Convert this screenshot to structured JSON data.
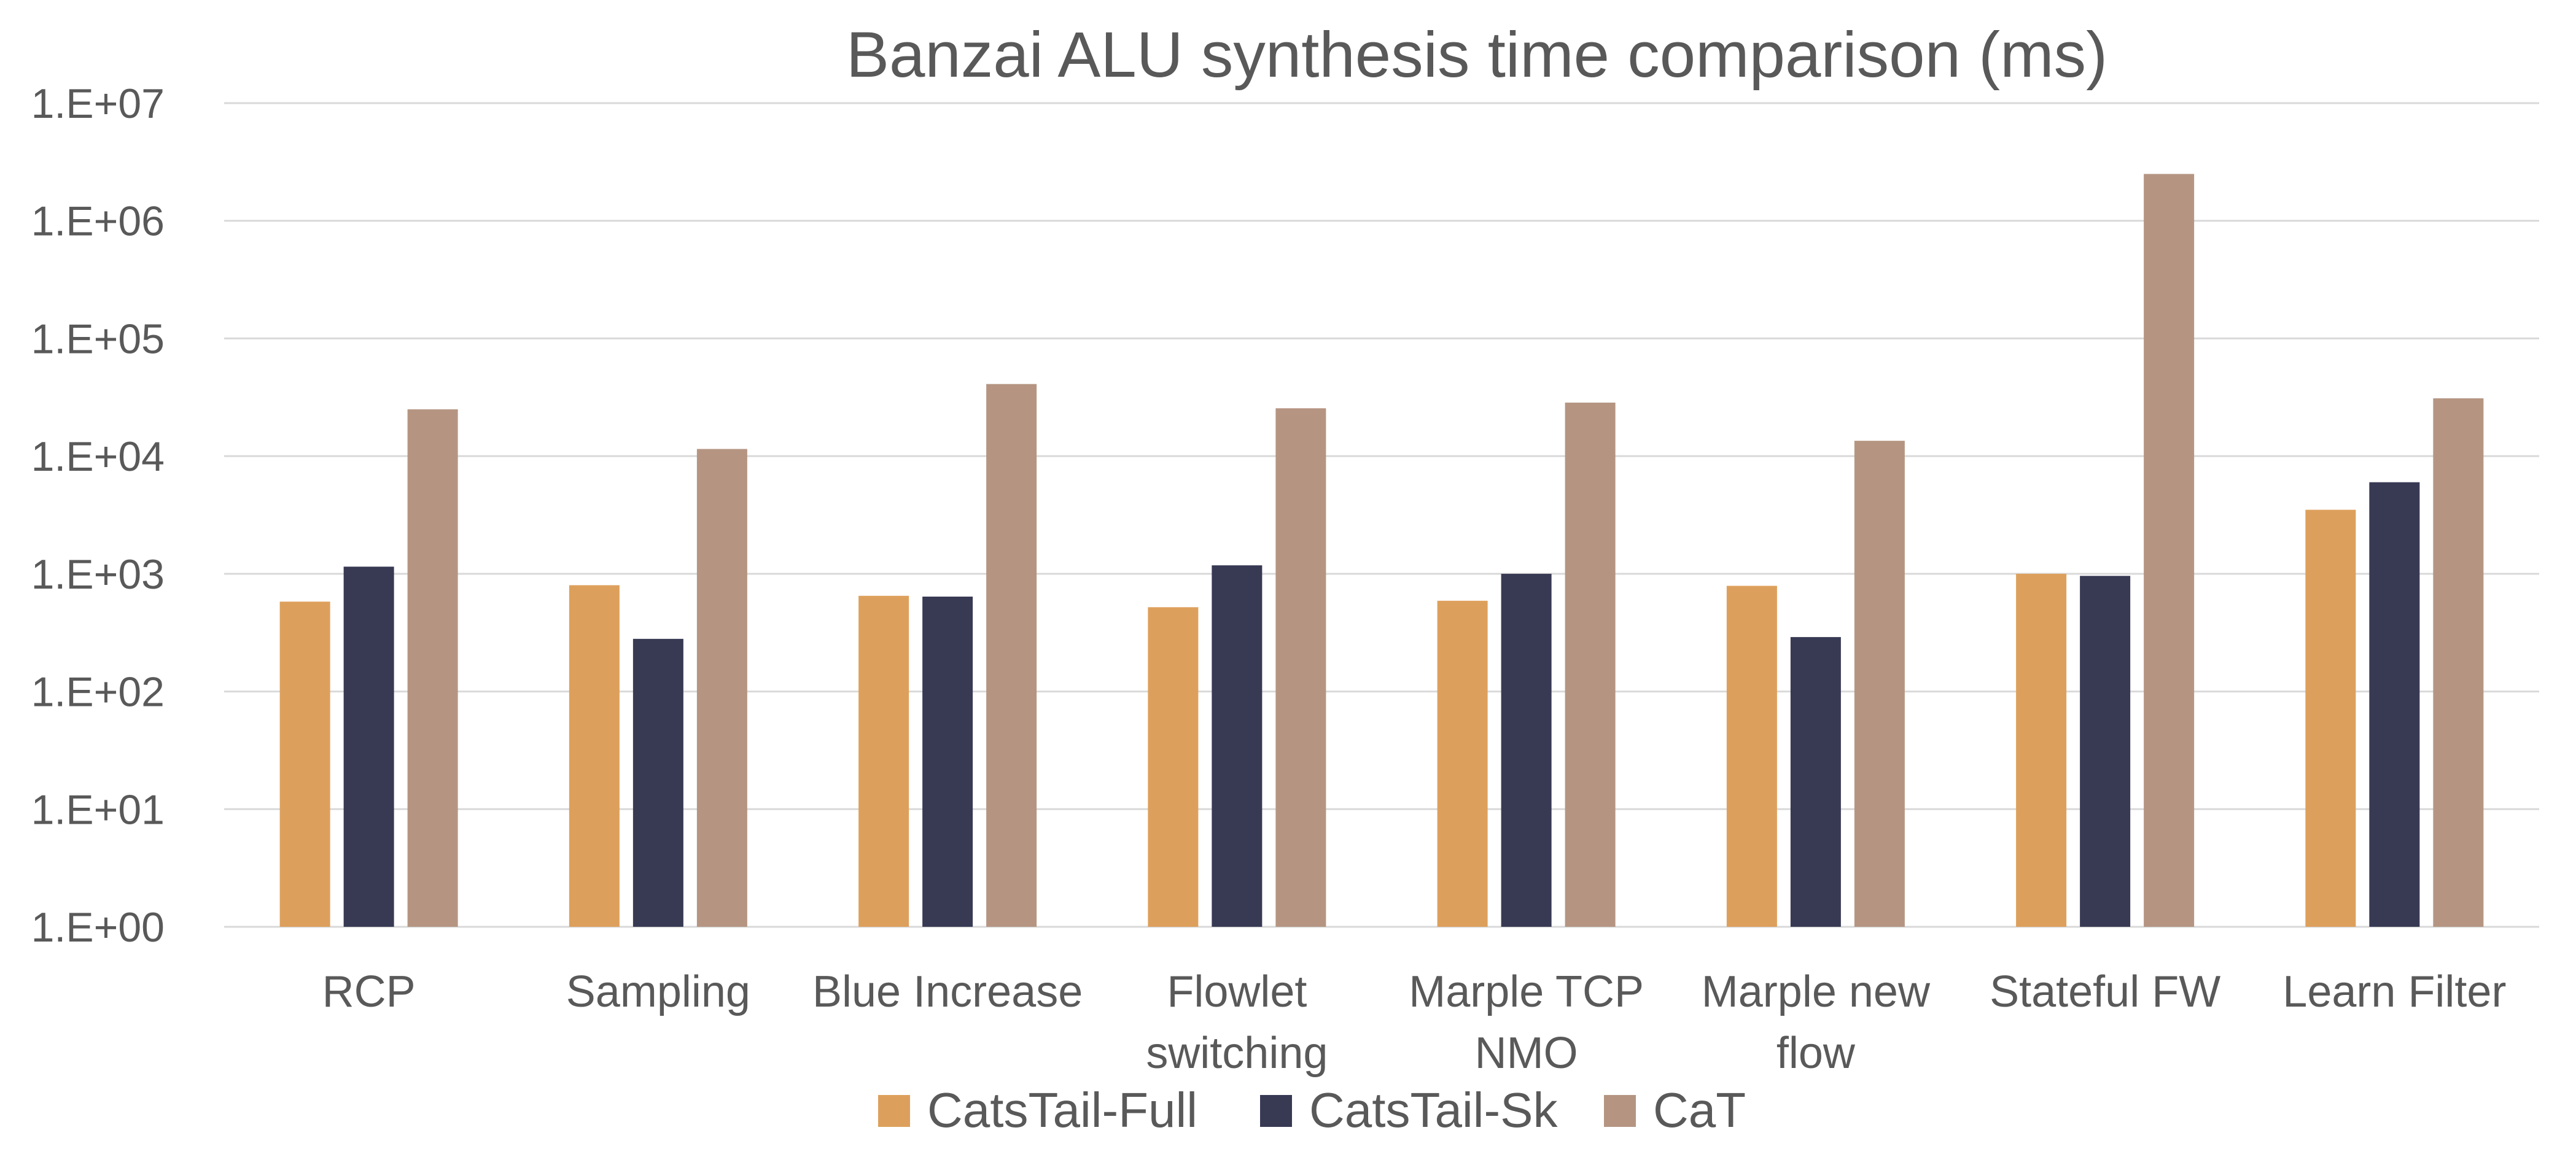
{
  "chart_data": {
    "type": "bar",
    "title": "Banzai ALU synthesis time comparison (ms)",
    "xlabel": "",
    "ylabel": "",
    "y_scale": "log",
    "ylim": [
      1,
      10000000
    ],
    "y_ticks": [
      "1.E+00",
      "1.E+01",
      "1.E+02",
      "1.E+03",
      "1.E+04",
      "1.E+05",
      "1.E+06",
      "1.E+07"
    ],
    "grid": true,
    "legend_position": "bottom",
    "categories": [
      [
        "RCP"
      ],
      [
        "Sampling"
      ],
      [
        "Blue Increase"
      ],
      [
        "Flowlet",
        "switching"
      ],
      [
        "Marple TCP",
        "NMO"
      ],
      [
        "Marple new",
        "flow"
      ],
      [
        "Stateful FW"
      ],
      [
        "Learn Filter"
      ]
    ],
    "series": [
      {
        "name": "CatsTail-Full",
        "color": "#DDA05C",
        "values": [
          580,
          800,
          650,
          520,
          590,
          790,
          1000,
          3500
        ]
      },
      {
        "name": "CatsTail-Sk",
        "color": "#383A54",
        "values": [
          1150,
          280,
          640,
          1180,
          1000,
          290,
          960,
          6000
        ]
      },
      {
        "name": "CaT",
        "color": "#B59582",
        "values": [
          25000,
          11500,
          41000,
          25500,
          28500,
          13500,
          2500000,
          31000
        ]
      }
    ]
  }
}
